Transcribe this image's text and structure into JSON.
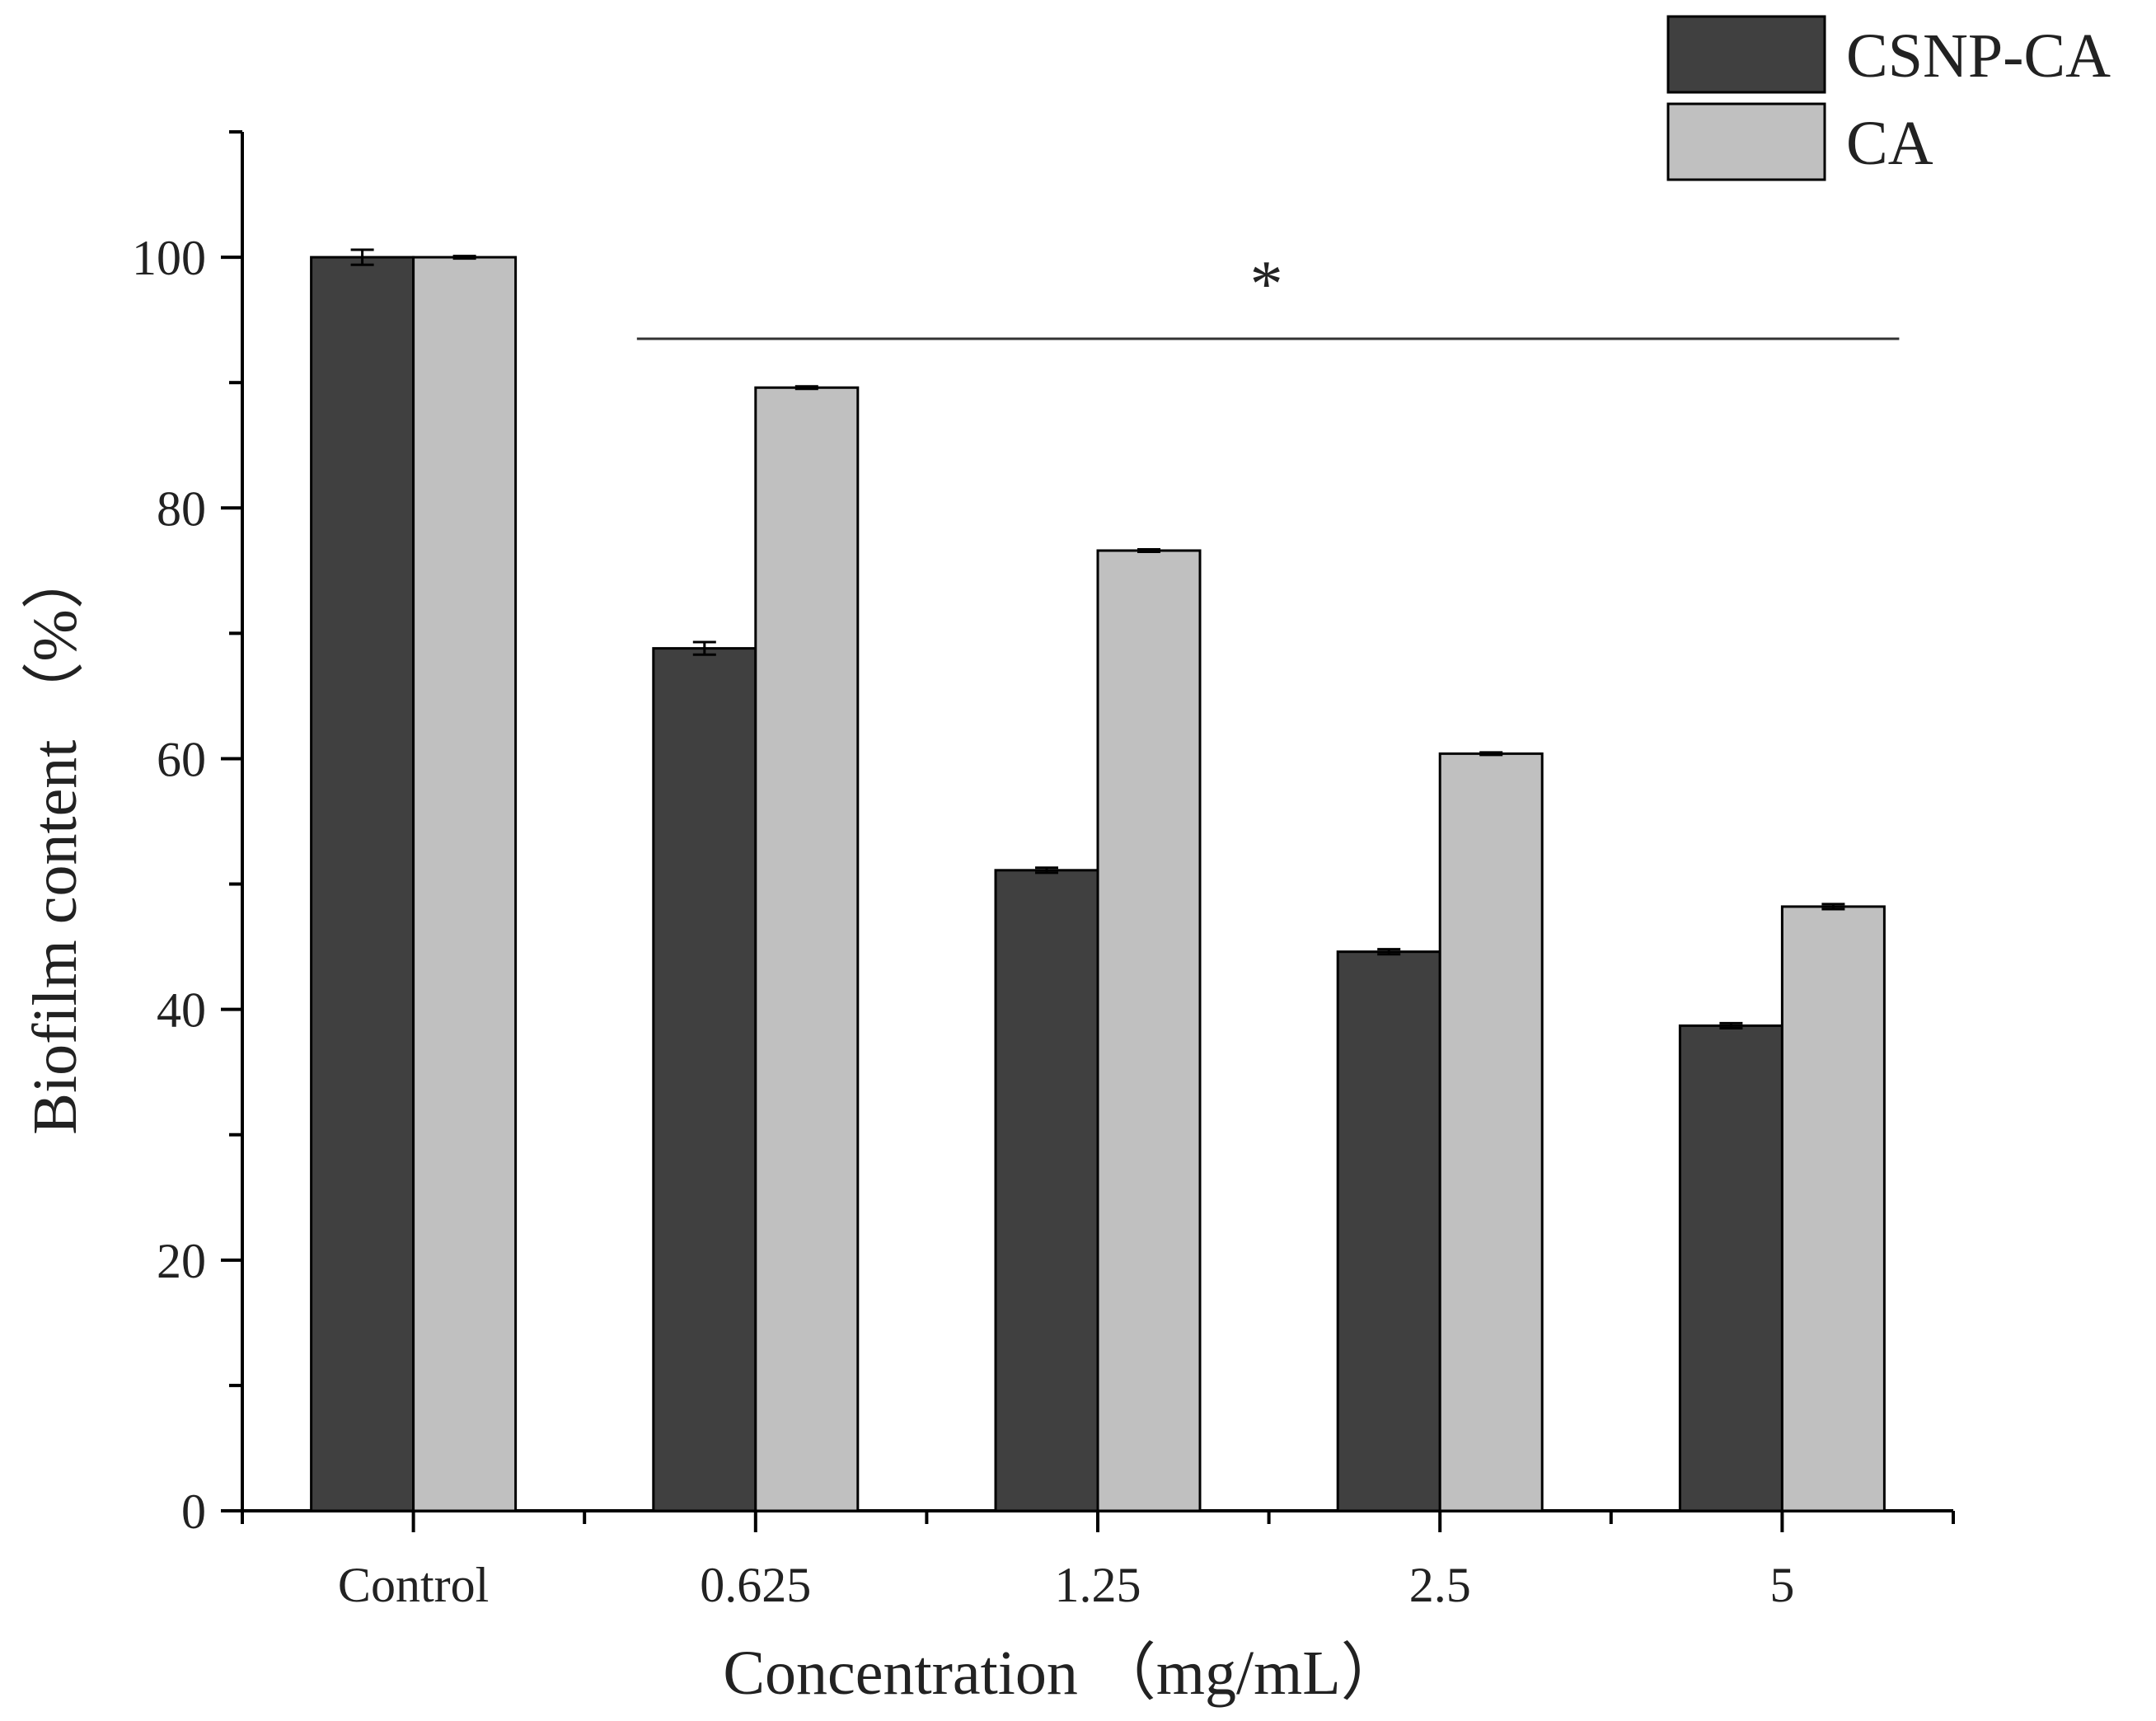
{
  "chart_data": {
    "type": "bar",
    "title": "",
    "xlabel": "Concentration （mg/mL）",
    "ylabel": "Biofilm content （%）",
    "categories": [
      "Control",
      "0.625",
      "1.25",
      "2.5",
      "5"
    ],
    "series": [
      {
        "name": "CSNP-CA",
        "color": "#404040",
        "values": [
          100,
          68.8,
          51.1,
          44.6,
          38.7
        ],
        "errors": [
          0.6,
          0.5,
          0.2,
          0.2,
          0.2
        ]
      },
      {
        "name": "CA",
        "color": "#c0c0c0",
        "values": [
          100,
          89.6,
          76.6,
          60.4,
          48.2
        ],
        "errors": [
          0.1,
          0.1,
          0.1,
          0.1,
          0.2
        ]
      }
    ],
    "ylim": [
      0,
      110
    ],
    "yticks": [
      0,
      20,
      40,
      60,
      80,
      100
    ],
    "yminor_step": 10,
    "grid": false,
    "legend": "top-right",
    "annotations": [
      {
        "text": "*",
        "from_category": "0.625",
        "to_category": "5",
        "bracket_value": 93.5
      }
    ]
  }
}
